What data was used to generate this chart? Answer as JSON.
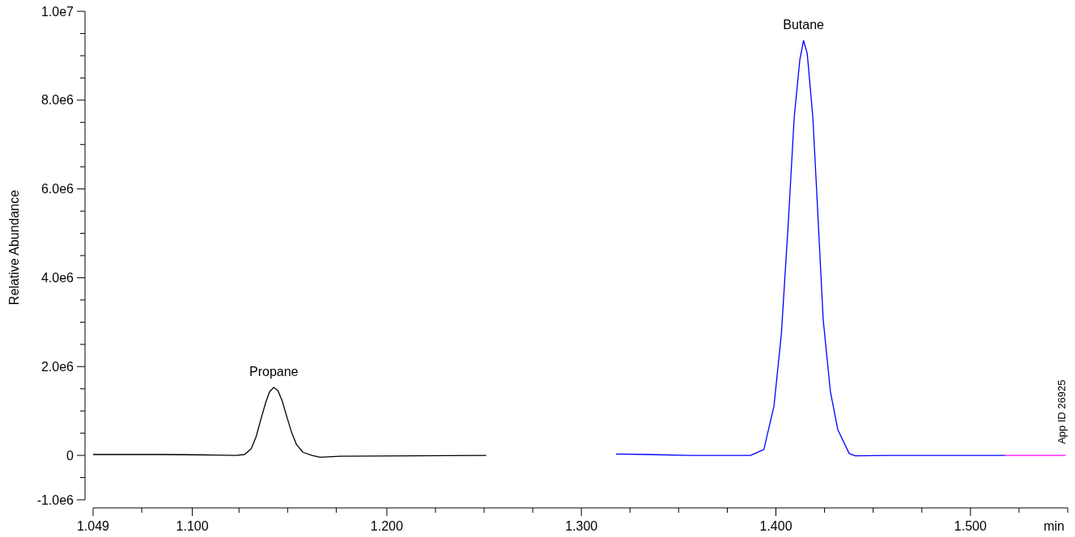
{
  "chart_data": {
    "type": "line",
    "ylabel": "Relative Abundance",
    "xlabel": "min",
    "xlim": [
      1.049,
      1.55
    ],
    "ylim": [
      -1000000,
      10000000
    ],
    "xticks": [
      1.049,
      {
        "value": 1.074,
        "label": null
      },
      {
        "value": 1.1,
        "label": "1.100"
      },
      {
        "value": 1.124,
        "label": null
      },
      {
        "value": 1.149,
        "label": null
      },
      {
        "value": 1.174,
        "label": null
      },
      {
        "value": 1.2,
        "label": "1.200"
      },
      {
        "value": 1.225,
        "label": null
      },
      {
        "value": 1.25,
        "label": null
      },
      {
        "value": 1.275,
        "label": null
      },
      {
        "value": 1.3,
        "label": "1.300"
      },
      {
        "value": 1.325,
        "label": null
      },
      {
        "value": 1.35,
        "label": null
      },
      {
        "value": 1.375,
        "label": null
      },
      {
        "value": 1.4,
        "label": "1.400"
      },
      {
        "value": 1.425,
        "label": null
      },
      {
        "value": 1.45,
        "label": null
      },
      {
        "value": 1.475,
        "label": null
      },
      {
        "value": 1.5,
        "label": "1.500"
      },
      {
        "value": 1.525,
        "label": null
      },
      {
        "value": 1.55,
        "label": null
      }
    ],
    "yticks": [
      {
        "value": -1000000,
        "label": "-1.0e6"
      },
      {
        "value": -500000,
        "label": null
      },
      0,
      {
        "value": 500000,
        "label": null
      },
      {
        "value": 1000000,
        "label": null
      },
      {
        "value": 1500000,
        "label": null
      },
      {
        "value": 2000000,
        "label": "2.0e6"
      },
      {
        "value": 2500000,
        "label": null
      },
      {
        "value": 3000000,
        "label": null
      },
      {
        "value": 3500000,
        "label": null
      },
      {
        "value": 4000000,
        "label": "4.0e6"
      },
      {
        "value": 4500000,
        "label": null
      },
      {
        "value": 5000000,
        "label": null
      },
      {
        "value": 5500000,
        "label": null
      },
      {
        "value": 6000000,
        "label": "6.0e6"
      },
      {
        "value": 6500000,
        "label": null
      },
      {
        "value": 7000000,
        "label": null
      },
      {
        "value": 7500000,
        "label": null
      },
      {
        "value": 8000000,
        "label": "8.0e6"
      },
      {
        "value": 8500000,
        "label": null
      },
      {
        "value": 9000000,
        "label": null
      },
      {
        "value": 9500000,
        "label": null
      },
      {
        "value": 10000000,
        "label": "1.0e7"
      }
    ],
    "grid": false,
    "series": [
      {
        "color": "#000000",
        "x": [
          1.049,
          1.084,
          1.11,
          1.1225,
          1.1269,
          1.1303,
          1.1328,
          1.1353,
          1.1378,
          1.1398,
          1.1419,
          1.144,
          1.1461,
          1.1486,
          1.1511,
          1.1536,
          1.1569,
          1.1615,
          1.1657,
          1.1761,
          1.2511
        ],
        "values": [
          20000,
          20000,
          10000,
          0,
          20000,
          150000,
          420000,
          820000,
          1200000,
          1440000,
          1530000,
          1460000,
          1240000,
          870000,
          510000,
          240000,
          70000,
          0,
          -40000,
          -20000,
          0
        ]
      },
      {
        "color": "#0000ff",
        "x": [
          1.3178,
          1.3344,
          1.3553,
          1.3869,
          1.3938,
          1.399,
          1.4028,
          1.4065,
          1.4094,
          1.4123,
          1.4142,
          1.4161,
          1.419,
          1.4213,
          1.4243,
          1.428,
          1.4318,
          1.4377,
          1.4407,
          1.4594,
          1.5178
        ],
        "values": [
          30000,
          20000,
          0,
          0,
          130000,
          1110000,
          2730000,
          5340000,
          7610000,
          8910000,
          9340000,
          9050000,
          7610000,
          5660000,
          3060000,
          1440000,
          580000,
          40000,
          -10000,
          0,
          0
        ]
      },
      {
        "color": "#ff00ff",
        "x": [
          1.5178,
          1.549
        ],
        "values": [
          0,
          0
        ]
      }
    ],
    "annotations": [
      {
        "text": "Propane",
        "x": 1.1419,
        "y": 1530000
      },
      {
        "text": "Butane",
        "x": 1.4142,
        "y": 9340000
      },
      "App ID 26925"
    ]
  }
}
